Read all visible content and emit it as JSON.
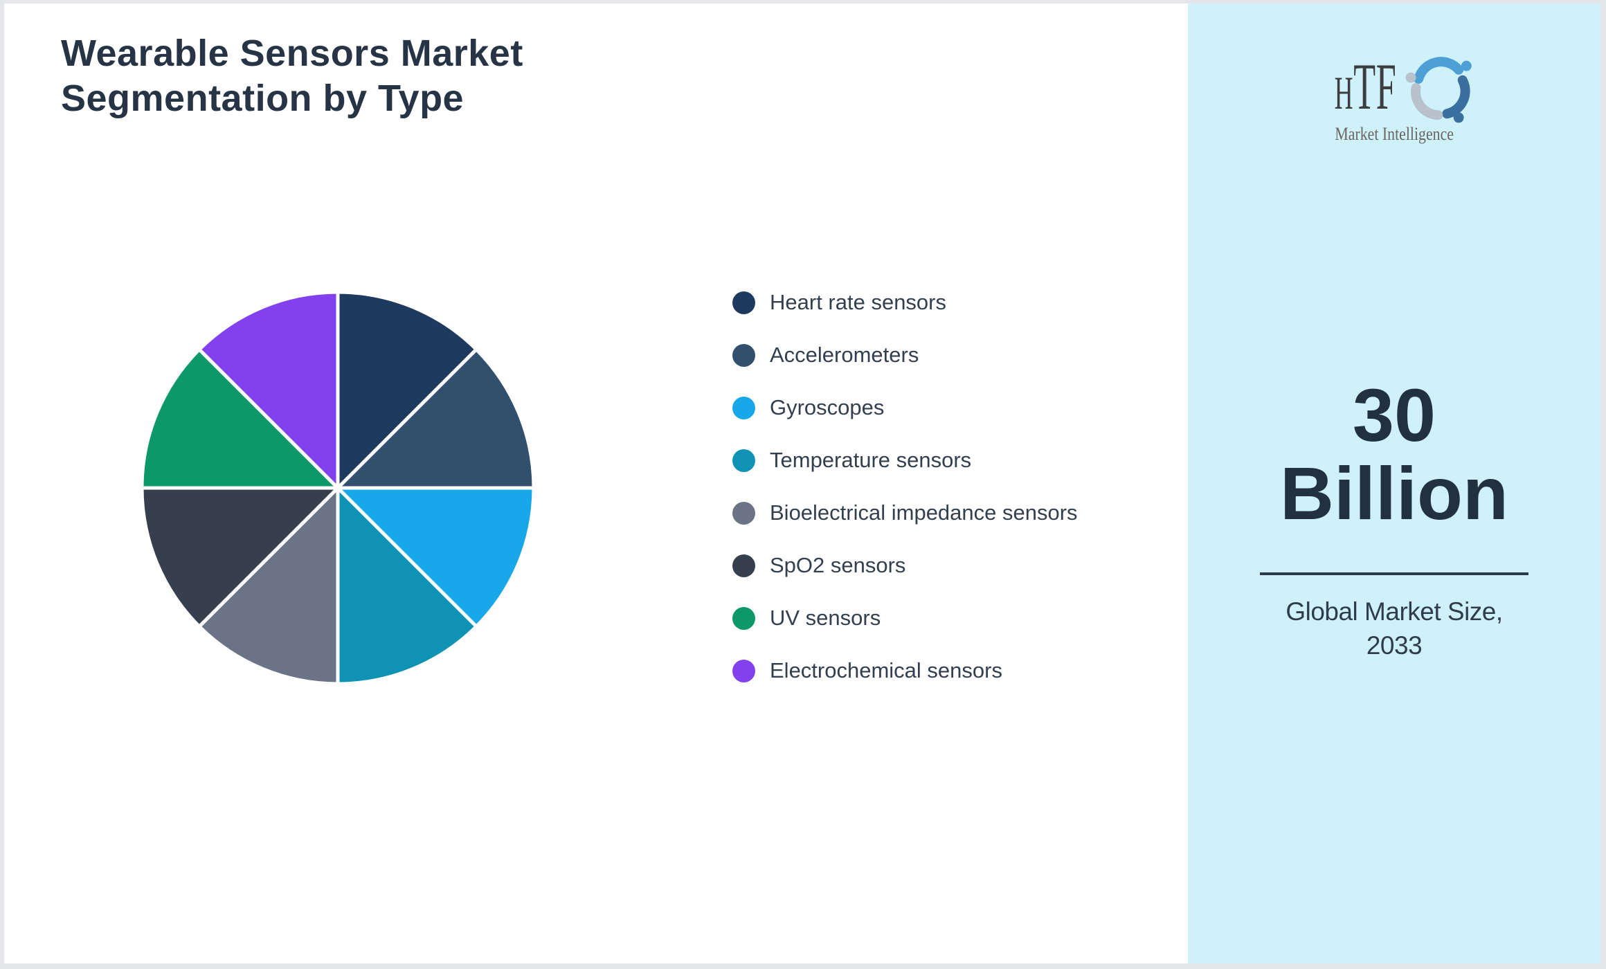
{
  "page": {
    "background": "#e4e6ea",
    "card_background": "#ffffff",
    "panel_background": "#cff2fa"
  },
  "header": {
    "title_line1": "Wearable Sensors Market",
    "title_line2": "Segmentation by Type",
    "title_color": "#273446"
  },
  "logo": {
    "acronym": "HTF",
    "tagline": "Market Intelligence",
    "swirl_colors": [
      "#4da0d6",
      "#3a6f9f",
      "#b7c2cd"
    ]
  },
  "panel": {
    "stat_line1": "30",
    "stat_line2": "Billion",
    "caption_line1": "Global Market Size,",
    "caption_line2": "2033",
    "divider_color": "#2b3b4c"
  },
  "chart_data": {
    "type": "pie",
    "title": "Wearable Sensors Market Segmentation by Type",
    "categories": [
      "Heart rate sensors",
      "Accelerometers",
      "Gyroscopes",
      "Temperature sensors",
      "Bioelectrical impedance sensors",
      "SpO2 sensors",
      "UV sensors",
      "Electrochemical sensors"
    ],
    "values": [
      12.5,
      12.5,
      12.5,
      12.5,
      12.5,
      12.5,
      12.5,
      12.5
    ],
    "unit": "percent (estimated, equal slices, no data labels shown)",
    "colors": [
      "#1e3a5f",
      "#31506e",
      "#18a8ea",
      "#0e93b4",
      "#6a7486",
      "#363f4e",
      "#0c9868",
      "#8240ee"
    ],
    "start_angle_deg": 0,
    "direction": "clockwise",
    "legend_position": "right",
    "data_labels": false,
    "slice_gap_color": "#ffffff"
  }
}
